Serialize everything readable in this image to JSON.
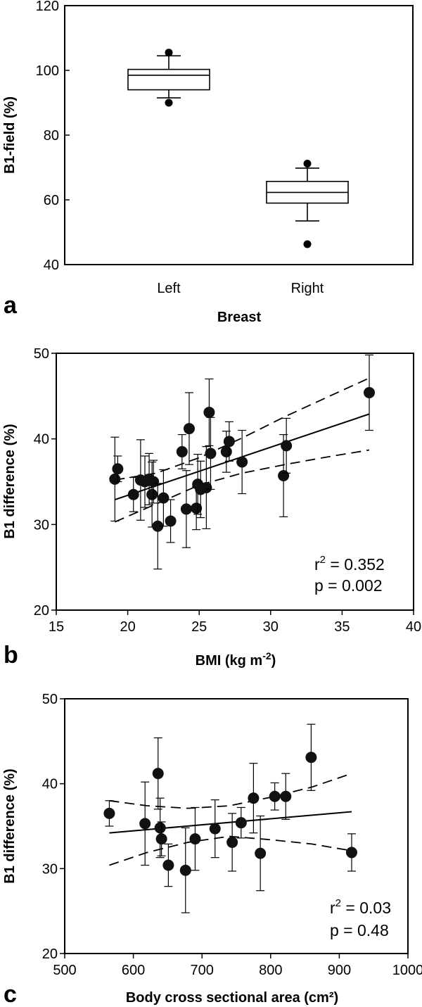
{
  "chart_data": [
    {
      "type": "box",
      "panel": "a",
      "xlabel": "Breast",
      "ylabel": "B1-field (%)",
      "ylim": [
        40,
        120
      ],
      "yticks": [
        "40",
        "60",
        "80",
        "100",
        "120"
      ],
      "categories": [
        "Left",
        "Right"
      ],
      "boxes": [
        {
          "category": "Left",
          "min": 91.5,
          "q1": 94,
          "median": 98.5,
          "q3": 100.3,
          "max": 104.5,
          "outliers": [
            105.5,
            90
          ]
        },
        {
          "category": "Right",
          "min": 53.5,
          "q1": 59,
          "median": 62.3,
          "q3": 65.7,
          "max": 69.8,
          "outliers": [
            71.2,
            46.3
          ]
        }
      ]
    },
    {
      "type": "scatter",
      "panel": "b",
      "xlabel": "BMI (kg m",
      "xlabel_sup": "-2",
      "xlabel_end": ")",
      "ylabel": "B1 difference (%)",
      "xlim": [
        15,
        40
      ],
      "ylim": [
        20,
        50
      ],
      "xticks": [
        "15",
        "20",
        "25",
        "30",
        "35",
        "40"
      ],
      "yticks": [
        "20",
        "30",
        "40",
        "50"
      ],
      "stat_r": "r",
      "stat_r_sup": "2",
      "stat_r_val": " = 0.352",
      "stat_p": "p = 0.002",
      "points": [
        {
          "x": 19.1,
          "y": 35.3,
          "err": 4.9
        },
        {
          "x": 19.3,
          "y": 36.5,
          "err": 1.5
        },
        {
          "x": 20.4,
          "y": 33.5,
          "err": 2.0
        },
        {
          "x": 20.9,
          "y": 35.2,
          "err": 4.7
        },
        {
          "x": 21.2,
          "y": 35.0,
          "err": 3.0
        },
        {
          "x": 21.5,
          "y": 35.3,
          "err": 3.0
        },
        {
          "x": 21.7,
          "y": 33.5,
          "err": 3.8
        },
        {
          "x": 21.8,
          "y": 35.0,
          "err": 2.5
        },
        {
          "x": 22.1,
          "y": 29.8,
          "err": 5.0
        },
        {
          "x": 22.5,
          "y": 33.1,
          "err": 3.3
        },
        {
          "x": 23.0,
          "y": 30.4,
          "err": 2.5
        },
        {
          "x": 23.8,
          "y": 38.5,
          "err": 2.0
        },
        {
          "x": 24.1,
          "y": 31.8,
          "err": 4.5
        },
        {
          "x": 24.3,
          "y": 41.2,
          "err": 4.2
        },
        {
          "x": 24.8,
          "y": 31.9,
          "err": 2.5
        },
        {
          "x": 24.9,
          "y": 34.7,
          "err": 3.5
        },
        {
          "x": 25.1,
          "y": 34.1,
          "err": 3.3
        },
        {
          "x": 25.5,
          "y": 34.3,
          "err": 4.8
        },
        {
          "x": 25.7,
          "y": 43.1,
          "err": 3.9
        },
        {
          "x": 25.8,
          "y": 38.3,
          "err": 4.2
        },
        {
          "x": 26.9,
          "y": 38.5,
          "err": 2.4
        },
        {
          "x": 27.1,
          "y": 39.7,
          "err": 2.3
        },
        {
          "x": 28.0,
          "y": 37.3,
          "err": 3.7
        },
        {
          "x": 30.9,
          "y": 35.7,
          "err": 4.8
        },
        {
          "x": 31.1,
          "y": 39.2,
          "err": 3.2
        },
        {
          "x": 36.9,
          "y": 45.4,
          "err": 4.4
        }
      ],
      "fit": {
        "x": [
          19.1,
          36.9
        ],
        "y": [
          32.9,
          42.9
        ]
      },
      "ci_upper": {
        "x": [
          19.1,
          22,
          25,
          28,
          31,
          34,
          36.9
        ],
        "y": [
          35.2,
          36.0,
          37.8,
          40.1,
          42.6,
          44.9,
          47.1
        ]
      },
      "ci_lower": {
        "x": [
          19.1,
          22,
          25,
          28,
          31,
          34,
          36.9
        ],
        "y": [
          30.3,
          32.4,
          34.6,
          36.0,
          37.0,
          37.9,
          38.7
        ]
      }
    },
    {
      "type": "scatter",
      "panel": "c",
      "xlabel": "Body cross sectional area (cm²)",
      "ylabel": "B1 difference (%)",
      "xlim": [
        500,
        1000
      ],
      "ylim": [
        20,
        50
      ],
      "xticks": [
        "500",
        "600",
        "700",
        "800",
        "900",
        "1000"
      ],
      "yticks": [
        "20",
        "30",
        "40",
        "50"
      ],
      "stat_r": "r",
      "stat_r_sup": "2",
      "stat_r_val": " = 0.03",
      "stat_p": "p = 0.48",
      "points": [
        {
          "x": 565,
          "y": 36.5,
          "err": 1.5
        },
        {
          "x": 617,
          "y": 35.3,
          "err": 4.9
        },
        {
          "x": 636,
          "y": 41.2,
          "err": 4.2
        },
        {
          "x": 639,
          "y": 34.8,
          "err": 3.5
        },
        {
          "x": 641,
          "y": 33.5,
          "err": 2.0
        },
        {
          "x": 651,
          "y": 30.4,
          "err": 2.5
        },
        {
          "x": 676,
          "y": 29.8,
          "err": 5.0
        },
        {
          "x": 690,
          "y": 33.5,
          "err": 3.7
        },
        {
          "x": 719,
          "y": 34.7,
          "err": 3.4
        },
        {
          "x": 744,
          "y": 33.1,
          "err": 3.4
        },
        {
          "x": 757,
          "y": 35.4,
          "err": 1.8
        },
        {
          "x": 775,
          "y": 38.3,
          "err": 4.1
        },
        {
          "x": 785,
          "y": 31.8,
          "err": 4.4
        },
        {
          "x": 806,
          "y": 38.5,
          "err": 1.6
        },
        {
          "x": 822,
          "y": 38.5,
          "err": 2.7
        },
        {
          "x": 859,
          "y": 43.1,
          "err": 3.9
        },
        {
          "x": 918,
          "y": 31.9,
          "err": 2.2
        }
      ],
      "fit": {
        "x": [
          565,
          918
        ],
        "y": [
          34.2,
          36.7
        ]
      },
      "ci_upper": {
        "x": [
          565,
          620,
          680,
          740,
          800,
          860,
          918
        ],
        "y": [
          38.0,
          37.4,
          37.1,
          37.4,
          38.4,
          39.6,
          41.2
        ]
      },
      "ci_lower": {
        "x": [
          565,
          620,
          680,
          740,
          800,
          860,
          918
        ],
        "y": [
          30.4,
          31.9,
          33.1,
          33.8,
          33.4,
          32.9,
          32.1
        ]
      }
    }
  ]
}
